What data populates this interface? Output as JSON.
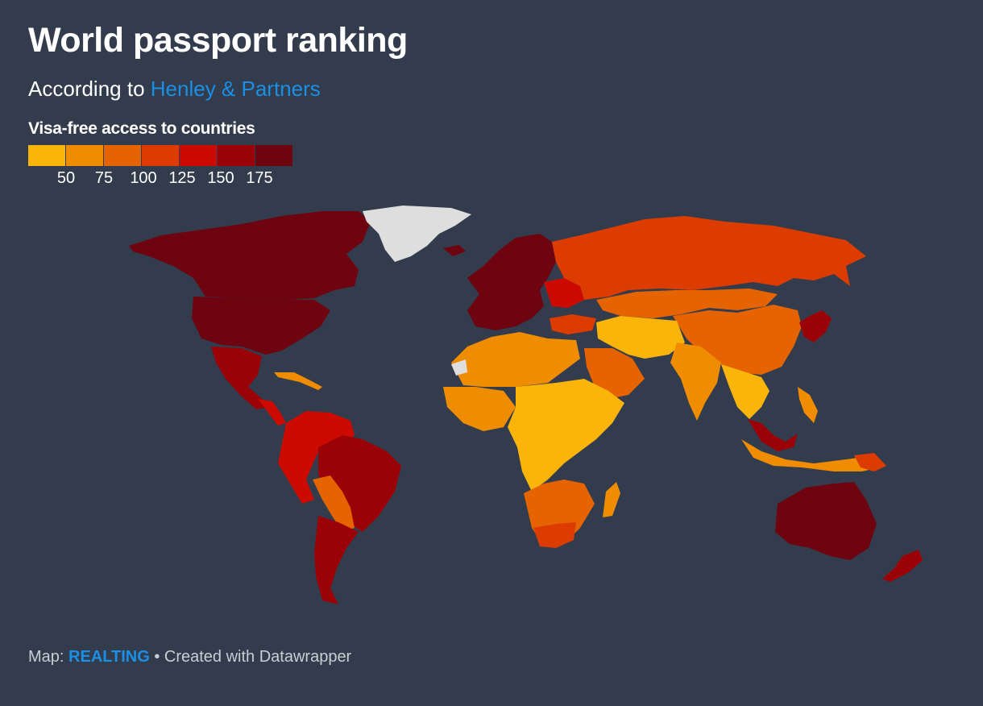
{
  "header": {
    "title": "World passport ranking",
    "subtitle_prefix": "According to",
    "subtitle_link": "Henley & Partners"
  },
  "legend": {
    "title": "Visa-free access to countries",
    "colors": [
      "#fbb40a",
      "#f08c00",
      "#e66400",
      "#dc3c00",
      "#cd0a00",
      "#9b0208",
      "#6d0410"
    ],
    "labels": [
      "50",
      "75",
      "100",
      "125",
      "150",
      "175"
    ]
  },
  "colors": {
    "background": "#333c4c",
    "no_data": "#dedede",
    "link": "#1a8fe6"
  },
  "footer": {
    "prefix": "Map:",
    "source": "REALTING",
    "credit": "• Created with Datawrapper"
  }
}
